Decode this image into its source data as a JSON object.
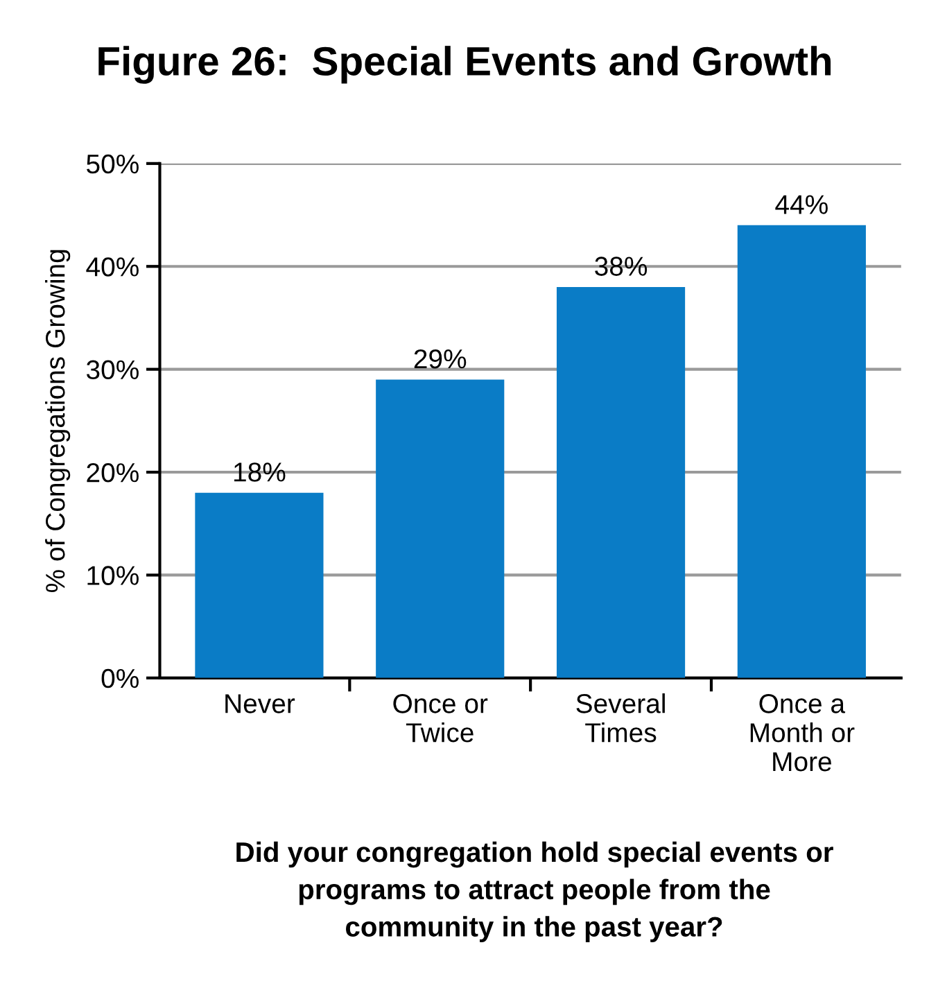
{
  "chart_data": {
    "type": "bar",
    "title": "Figure 26:  Special Events and Growth",
    "ylabel": "% of Congregations Growing",
    "xlabel": "Did your congregation hold special events or\nprograms to attract people from the\ncommunity in the past year?",
    "categories": [
      "Never",
      "Once or\nTwice",
      "Several\nTimes",
      "Once a\nMonth or\nMore"
    ],
    "values": [
      18,
      29,
      38,
      44
    ],
    "value_labels": [
      "18%",
      "29%",
      "38%",
      "44%"
    ],
    "color": "#0a7cc6",
    "ylim": [
      0,
      50
    ],
    "yticks": [
      {
        "value": 0,
        "label": "0%"
      },
      {
        "value": 10,
        "label": "10%"
      },
      {
        "value": 20,
        "label": "20%"
      },
      {
        "value": 30,
        "label": "30%"
      },
      {
        "value": 40,
        "label": "40%"
      },
      {
        "value": 50,
        "label": "50%"
      }
    ],
    "grid": "y",
    "legend": false
  }
}
